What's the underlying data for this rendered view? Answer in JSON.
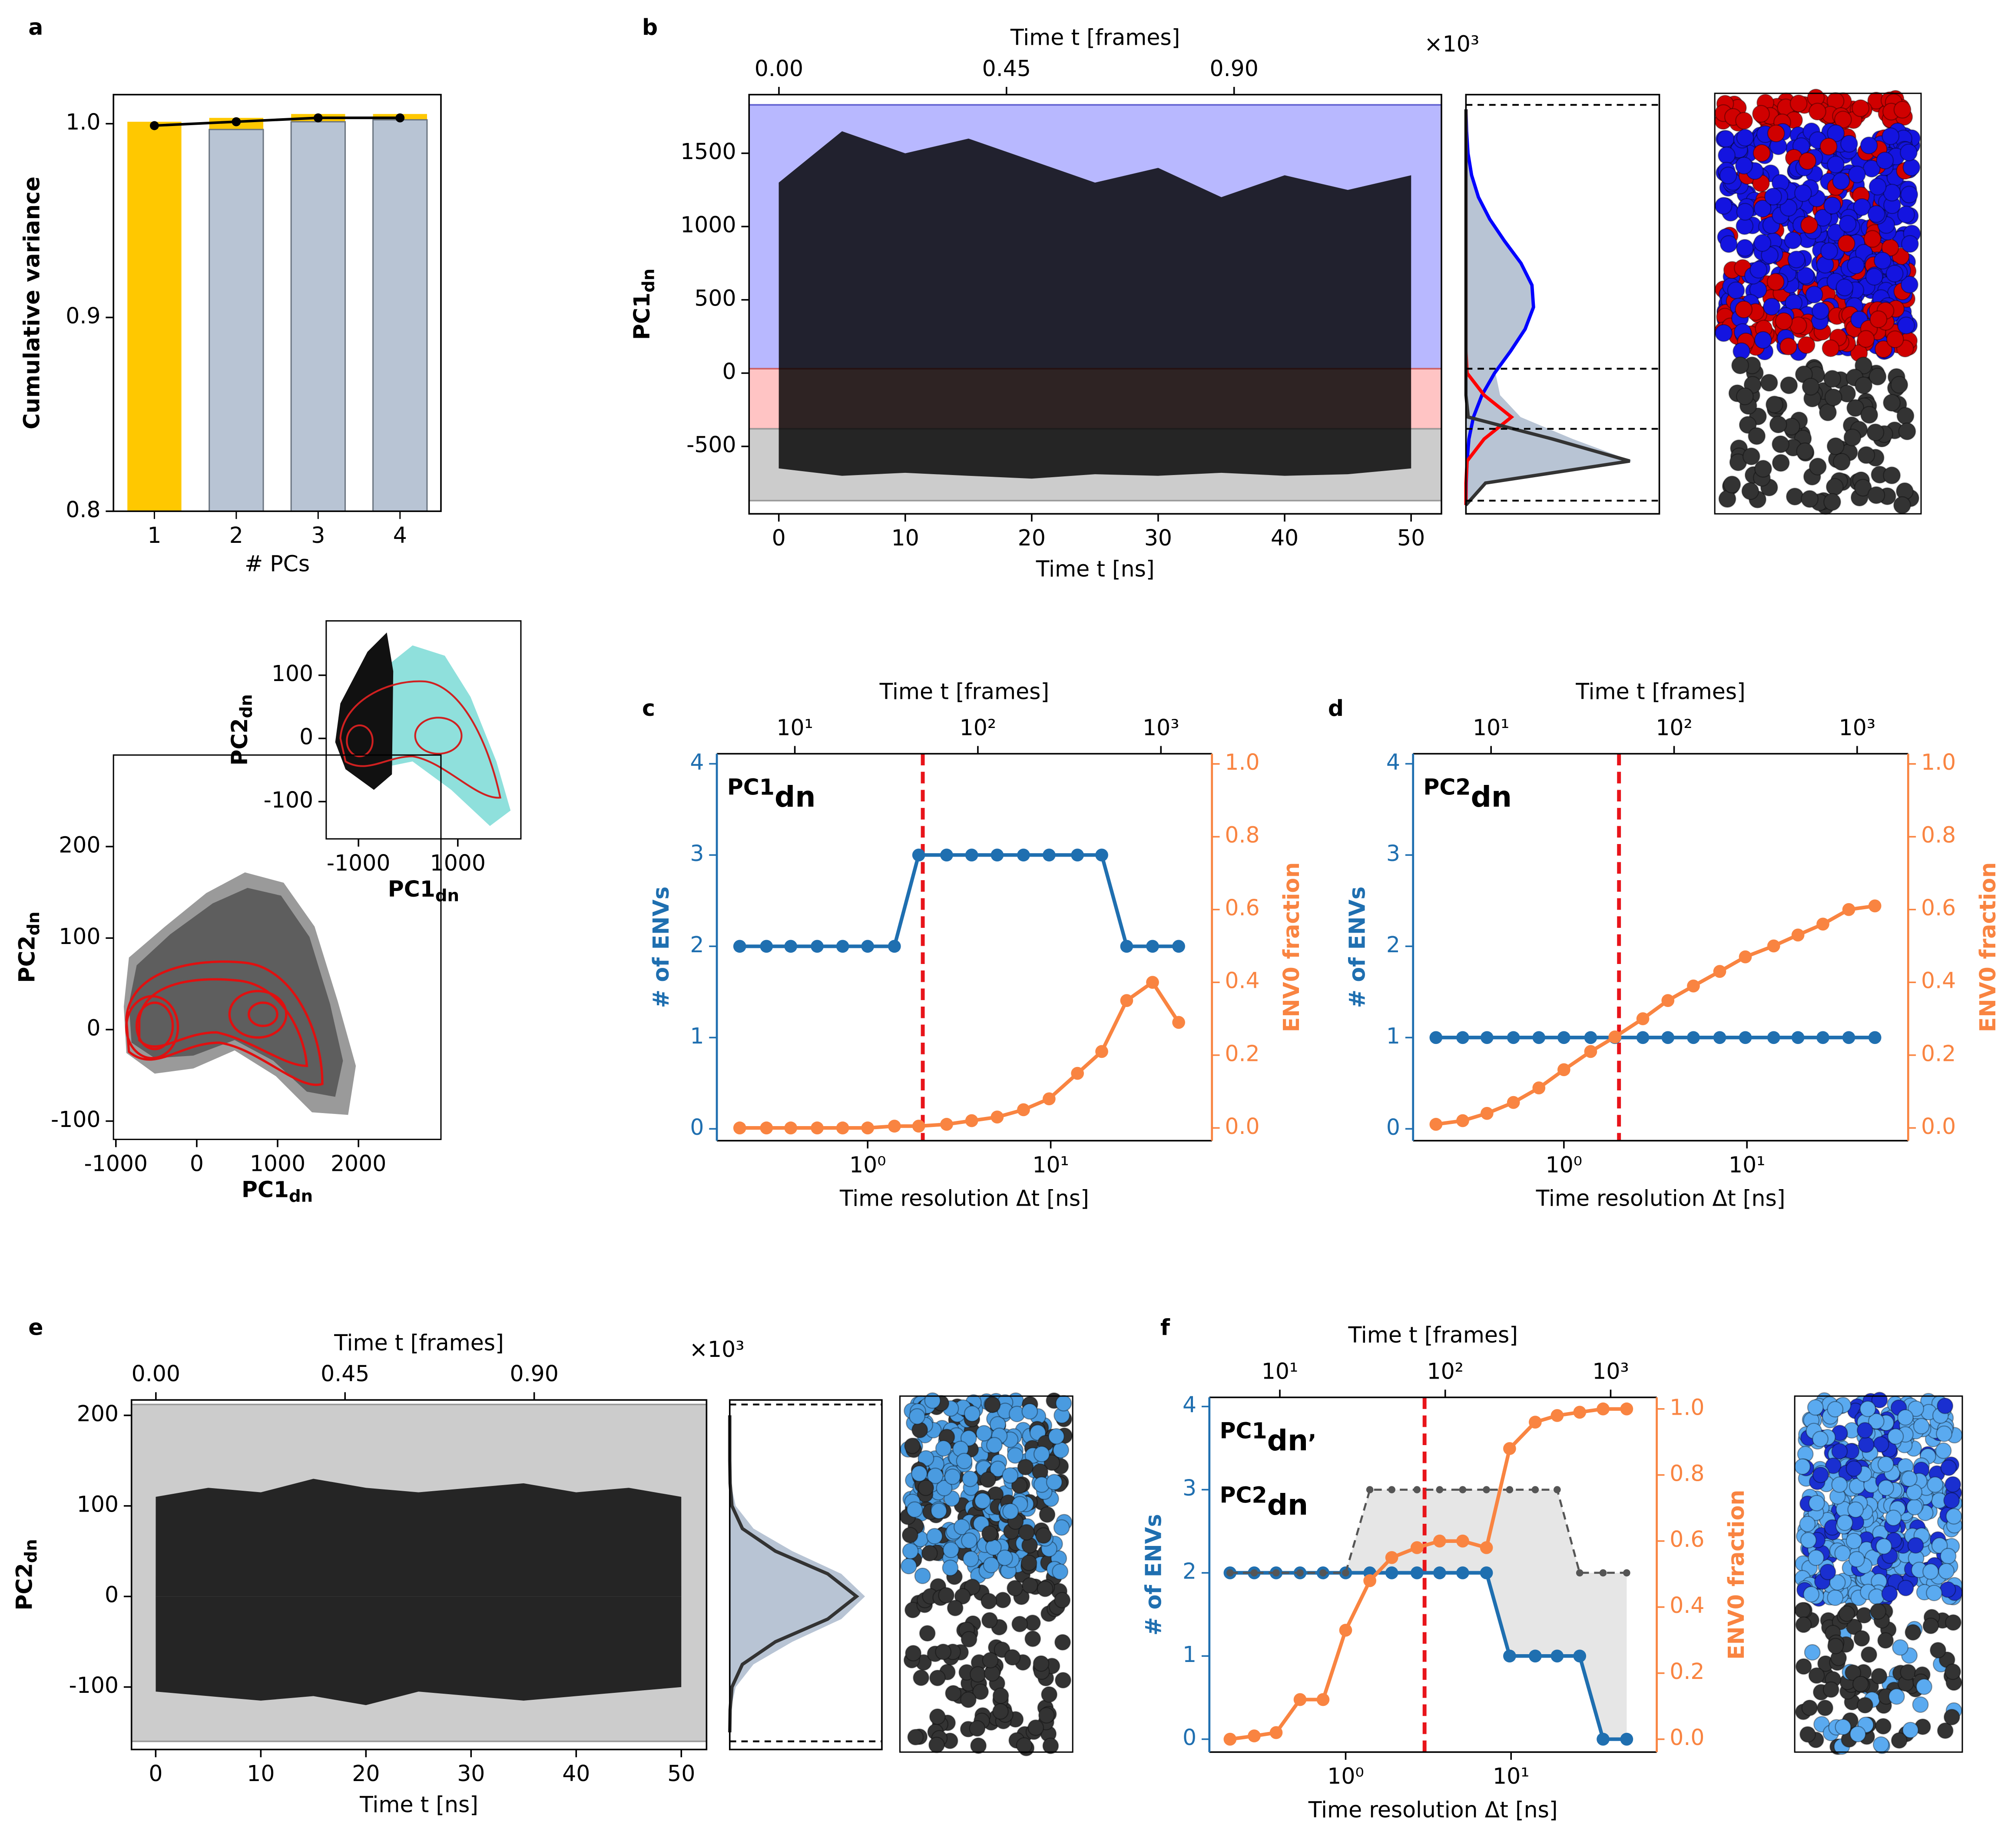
{
  "panel_labels": [
    "a",
    "b",
    "c",
    "d",
    "e",
    "f"
  ],
  "chart_data": [
    {
      "type": "bar",
      "categories": [
        "1",
        "2",
        "3",
        "4"
      ],
      "xlabel": "# PCs",
      "ylabel": "Cumulative variance",
      "series": [
        {
          "color": "#ffc800",
          "values": [
            1.001,
            1.003,
            1.005,
            1.005
          ]
        },
        {
          "color": "#b8c4d4",
          "values": [
            null,
            0.997,
            1.001,
            1.002
          ]
        }
      ],
      "line": {
        "color": "#000000",
        "values": [
          0.999,
          1.001,
          1.003,
          1.003
        ]
      },
      "ylim": [
        0.8,
        1.015
      ],
      "yticks": [
        0.8,
        0.9,
        {
          "value": 1.0,
          "label": "1.0"
        }
      ]
    },
    {
      "type": "scatter",
      "xlabel": {
        "text": "PC1",
        "sub": "dn"
      },
      "ylabel": {
        "text": "PC2",
        "sub": "dn"
      },
      "xlim": [
        -1030,
        3020
      ],
      "xticks": [
        -1000,
        0,
        1000,
        2000
      ],
      "ylim": [
        -120,
        300
      ],
      "yticks": [
        -100,
        0,
        100,
        200
      ]
    },
    {
      "type": "scatter",
      "xlabel": {
        "text": "PC1",
        "sub": "dn"
      },
      "ylabel": {
        "text": "PC2",
        "sub": "dn"
      },
      "xlim": [
        -1650,
        2270
      ],
      "xticks": [
        -1000,
        1000
      ],
      "ylim": [
        -159,
        186
      ],
      "yticks": [
        -100,
        0,
        100
      ]
    },
    {
      "type": "timeseries",
      "xlabel": "Time t [ns]",
      "top_xlabel": "Time t [frames]",
      "top_multiplier": "×10³",
      "ylabel": {
        "text": "PC1",
        "sub": "dn"
      },
      "xlim": [
        -2.35,
        52.4
      ],
      "xticks": [
        0,
        10,
        20,
        30,
        40,
        50
      ],
      "top_xlim": [
        -0.059,
        1.31
      ],
      "top_xticks": [
        {
          "value": 0,
          "label": "0.00"
        },
        {
          "value": 0.45,
          "label": "0.45"
        },
        {
          "value": 0.9,
          "label": "0.90"
        }
      ],
      "ylim": [
        -960,
        1900
      ],
      "yticks": [
        -500,
        0,
        500,
        1000,
        1500
      ],
      "regions": [
        {
          "range": [
            30,
            1830
          ],
          "color": "#b8b8ff",
          "edge": "#6060d0"
        },
        {
          "range": [
            -380,
            30
          ],
          "color": "#ffc4c4",
          "edge": "#d06060"
        },
        {
          "range": [
            -870,
            -380
          ],
          "color": "#cccccc",
          "edge": "#999999"
        }
      ],
      "x": [
        0,
        5,
        10,
        15,
        20,
        25,
        30,
        35,
        40,
        45,
        50
      ],
      "series": [
        {
          "color": "#000000",
          "values": [
            1300,
            1650,
            1500,
            1600,
            1450,
            1300,
            1400,
            1200,
            1350,
            1250,
            1350
          ]
        },
        {
          "color": "#000000",
          "values": [
            -650,
            -700,
            -680,
            -700,
            -720,
            -690,
            -700,
            -680,
            -700,
            -690,
            -650
          ]
        }
      ]
    },
    {
      "type": "density",
      "ylim": [
        -960,
        1900
      ],
      "xlim": [
        0,
        0.85
      ],
      "hlines": [
        1830,
        30,
        -380,
        -870
      ],
      "y": [
        -900,
        -750,
        -600,
        -450,
        -300,
        -150,
        0,
        150,
        300,
        450,
        600,
        750,
        900,
        1050,
        1200,
        1350,
        1500,
        1650,
        1800
      ],
      "series": [
        {
          "color": "#b8c4d4",
          "fill": true,
          "values": [
            0,
            0.087,
            0.73,
            0.47,
            0.24,
            0.15,
            0.13,
            0.2,
            0.26,
            0.3,
            0.29,
            0.24,
            0.17,
            0.1,
            0.055,
            0.025,
            0.009,
            0.003,
            0
          ]
        },
        {
          "color": "#0000ff",
          "values": [
            0,
            0.001,
            0.005,
            0.013,
            0.033,
            0.07,
            0.126,
            0.196,
            0.26,
            0.297,
            0.29,
            0.242,
            0.17,
            0.105,
            0.055,
            0.025,
            0.009,
            0.003,
            0
          ]
        },
        {
          "color": "#ff0000",
          "values": [
            0,
            0,
            0.005,
            0.08,
            0.2,
            0.08,
            0.005,
            0,
            0,
            0,
            0,
            0,
            0,
            0,
            0,
            0,
            0,
            0,
            0
          ]
        },
        {
          "color": "#333333",
          "values": [
            0,
            0.086,
            0.72,
            0.38,
            0.01,
            0,
            0,
            0,
            0,
            0,
            0,
            0,
            0,
            0,
            0,
            0,
            0,
            0,
            0
          ]
        }
      ]
    },
    {
      "type": "dual_line",
      "xlabel": "Time resolution Δt [ns]",
      "top_xlabel": "Time t [frames]",
      "ylabel": "# of ENVs",
      "y2label": "ENV0 fraction",
      "inset_labels": [
        {
          "text": "PC1",
          "sub": "dn"
        }
      ],
      "xlim": [
        0.15,
        76
      ],
      "xticks": [
        {
          "value": 1,
          "label": "10⁰"
        },
        {
          "value": 10,
          "label": "10¹"
        }
      ],
      "top_xlim": [
        3.75,
        1900
      ],
      "top_xticks": [
        {
          "value": 10,
          "label": "10¹"
        },
        {
          "value": 100,
          "label": "10²"
        },
        {
          "value": 1000,
          "label": "10³"
        }
      ],
      "ylim": [
        -0.13,
        4.11
      ],
      "yticks": [
        0,
        1,
        2,
        3,
        4
      ],
      "y2lim": [
        -0.035,
        1.028
      ],
      "y2ticks": [
        {
          "value": 0,
          "label": "0.0"
        },
        0.2,
        0.4,
        0.6,
        0.8,
        {
          "value": 1,
          "label": "1.0"
        }
      ],
      "vline": {
        "value": 2,
        "color": "#e8141a"
      },
      "x": [
        0.2,
        0.28,
        0.38,
        0.53,
        0.73,
        1,
        1.4,
        1.9,
        2.7,
        3.7,
        5.1,
        7.1,
        9.8,
        14,
        19,
        26,
        36,
        50
      ],
      "series": [
        {
          "color": "#1f6fb0",
          "values": [
            2,
            2,
            2,
            2,
            2,
            2,
            2,
            3,
            3,
            3,
            3,
            3,
            3,
            3,
            3,
            2,
            2,
            2
          ]
        },
        {
          "color": "#f98441",
          "axis": "y2",
          "values": [
            0,
            0,
            0,
            0,
            0,
            0,
            0.005,
            0.005,
            0.01,
            0.02,
            0.03,
            0.05,
            0.08,
            0.15,
            0.21,
            0.35,
            0.4,
            0.29
          ]
        }
      ]
    },
    {
      "type": "dual_line",
      "xlabel": "Time resolution Δt [ns]",
      "top_xlabel": "Time t [frames]",
      "ylabel": "# of ENVs",
      "y2label": "ENV0 fraction",
      "inset_labels": [
        {
          "text": "PC2",
          "sub": "dn"
        }
      ],
      "xlim": [
        0.15,
        76
      ],
      "xticks": [
        {
          "value": 1,
          "label": "10⁰"
        },
        {
          "value": 10,
          "label": "10¹"
        }
      ],
      "top_xlim": [
        3.75,
        1900
      ],
      "top_xticks": [
        {
          "value": 10,
          "label": "10¹"
        },
        {
          "value": 100,
          "label": "10²"
        },
        {
          "value": 1000,
          "label": "10³"
        }
      ],
      "ylim": [
        -0.13,
        4.11
      ],
      "yticks": [
        0,
        1,
        2,
        3,
        4
      ],
      "y2lim": [
        -0.035,
        1.028
      ],
      "y2ticks": [
        {
          "value": 0,
          "label": "0.0"
        },
        0.2,
        0.4,
        0.6,
        0.8,
        {
          "value": 1,
          "label": "1.0"
        }
      ],
      "vline": {
        "value": 2,
        "color": "#e8141a"
      },
      "x": [
        0.2,
        0.28,
        0.38,
        0.53,
        0.73,
        1,
        1.4,
        1.9,
        2.7,
        3.7,
        5.1,
        7.1,
        9.8,
        14,
        19,
        26,
        36,
        50
      ],
      "series": [
        {
          "color": "#1f6fb0",
          "values": [
            1,
            1,
            1,
            1,
            1,
            1,
            1,
            1,
            1,
            1,
            1,
            1,
            1,
            1,
            1,
            1,
            1,
            1
          ]
        },
        {
          "color": "#f98441",
          "axis": "y2",
          "values": [
            0.01,
            0.02,
            0.04,
            0.07,
            0.11,
            0.16,
            0.21,
            0.25,
            0.3,
            0.35,
            0.39,
            0.43,
            0.47,
            0.5,
            0.53,
            0.56,
            0.6,
            0.61
          ]
        }
      ]
    },
    {
      "type": "timeseries",
      "xlabel": "Time t [ns]",
      "top_xlabel": "Time t [frames]",
      "top_multiplier": "×10³",
      "ylabel": {
        "text": "PC2",
        "sub": "dn"
      },
      "xlim": [
        -2.3,
        52.4
      ],
      "xticks": [
        0,
        10,
        20,
        30,
        40,
        50
      ],
      "top_xlim": [
        -0.058,
        1.31
      ],
      "top_xticks": [
        {
          "value": 0,
          "label": "0.00"
        },
        {
          "value": 0.45,
          "label": "0.45"
        },
        {
          "value": 0.9,
          "label": "0.90"
        }
      ],
      "ylim": [
        -169,
        217
      ],
      "yticks": [
        -100,
        0,
        100,
        200
      ],
      "regions": [
        {
          "range": [
            -160,
            212
          ],
          "color": "#cccccc",
          "edge": "#999999"
        }
      ],
      "x": [
        0,
        5,
        10,
        15,
        20,
        25,
        30,
        35,
        40,
        45,
        50
      ],
      "series": [
        {
          "color": "#000000",
          "values": [
            110,
            120,
            115,
            130,
            120,
            115,
            120,
            125,
            115,
            120,
            110
          ]
        },
        {
          "color": "#000000",
          "values": [
            -105,
            -110,
            -115,
            -110,
            -120,
            -105,
            -110,
            -115,
            -110,
            -105,
            -100
          ]
        }
      ]
    },
    {
      "type": "density",
      "ylim": [
        -169,
        217
      ],
      "xlim": [
        0,
        0.9
      ],
      "hlines": [
        212,
        -160
      ],
      "y": [
        -150,
        -125,
        -100,
        -75,
        -50,
        -25,
        0,
        25,
        50,
        75,
        100,
        125,
        150,
        175,
        200
      ],
      "series": [
        {
          "color": "#b8c4d4",
          "fill": true,
          "values": [
            0,
            0.006,
            0.035,
            0.14,
            0.37,
            0.66,
            0.8,
            0.66,
            0.37,
            0.14,
            0.035,
            0.006,
            0,
            0,
            0
          ]
        },
        {
          "color": "#333333",
          "values": [
            0,
            0.002,
            0.013,
            0.075,
            0.27,
            0.58,
            0.75,
            0.58,
            0.27,
            0.075,
            0.013,
            0.002,
            0,
            0,
            0
          ]
        }
      ]
    },
    {
      "type": "dual_line",
      "xlabel": "Time resolution Δt [ns]",
      "top_xlabel": "Time t [frames]",
      "ylabel": "# of ENVs",
      "y2label": "ENV0 fraction",
      "inset_labels": [
        {
          "text": "PC1",
          "sub": "dn",
          "tail": ","
        },
        {
          "text": "PC2",
          "sub": "dn"
        }
      ],
      "xlim": [
        0.15,
        76
      ],
      "xticks": [
        {
          "value": 1,
          "label": "10⁰"
        },
        {
          "value": 10,
          "label": "10¹"
        }
      ],
      "top_xlim": [
        3.75,
        1900
      ],
      "top_xticks": [
        {
          "value": 10,
          "label": "10¹"
        },
        {
          "value": 100,
          "label": "10²"
        },
        {
          "value": 1000,
          "label": "10³"
        }
      ],
      "ylim": [
        -0.155,
        4.11
      ],
      "yticks": [
        0,
        1,
        2,
        3,
        4
      ],
      "y2lim": [
        -0.039,
        1.035
      ],
      "y2ticks": [
        {
          "value": 0,
          "label": "0.0"
        },
        0.2,
        0.4,
        0.6,
        0.8,
        {
          "value": 1,
          "label": "1.0"
        }
      ],
      "vline": {
        "value": 3,
        "color": "#e8141a"
      },
      "x": [
        0.2,
        0.28,
        0.38,
        0.53,
        0.73,
        1,
        1.4,
        1.9,
        2.7,
        3.7,
        5.1,
        7.1,
        9.8,
        14,
        19,
        26,
        36,
        50
      ],
      "series": [
        {
          "color": "#1f6fb0",
          "values": [
            2,
            2,
            2,
            2,
            2,
            2,
            2,
            2,
            2,
            2,
            2,
            2,
            1,
            1,
            1,
            1,
            0,
            0
          ]
        },
        {
          "color": "#555555",
          "dashed": true,
          "shade": "#e6e6e6",
          "values": [
            2,
            2,
            2,
            2,
            2,
            2,
            3,
            3,
            3,
            3,
            3,
            3,
            3,
            3,
            3,
            2,
            2,
            2
          ]
        },
        {
          "color": "#f98441",
          "axis": "y2",
          "values": [
            0,
            0.01,
            0.02,
            0.12,
            0.12,
            0.33,
            0.48,
            0.55,
            0.58,
            0.6,
            0.6,
            0.58,
            0.88,
            0.96,
            0.98,
            0.99,
            1,
            1
          ]
        }
      ]
    }
  ]
}
